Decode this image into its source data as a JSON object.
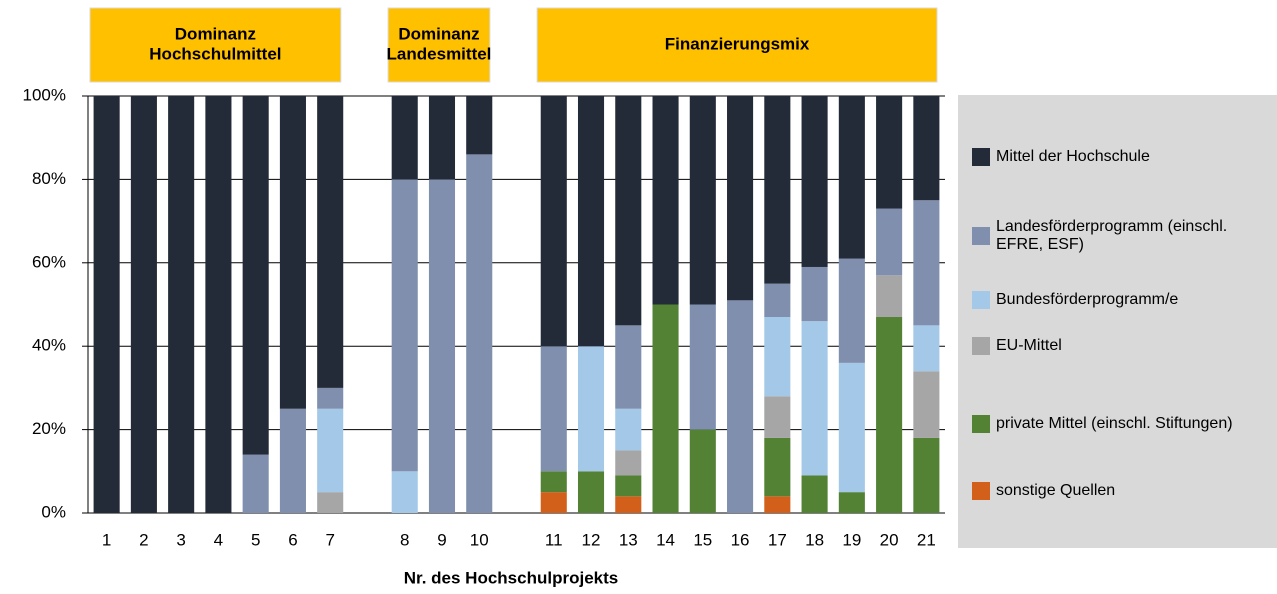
{
  "chart_data": {
    "type": "stacked_bar",
    "x_label": "Nr. des Hochschulprojekts",
    "groups": [
      [
        "Dominanz",
        "Hochschulmittel"
      ],
      [
        "Dominanz",
        "Landesmittel"
      ],
      [
        "Finanzierungsmix"
      ]
    ],
    "categories": [
      "1",
      "2",
      "3",
      "4",
      "5",
      "6",
      "7",
      null,
      "8",
      "9",
      "10",
      null,
      "11",
      "12",
      "13",
      "14",
      "15",
      "16",
      "17",
      "18",
      "19",
      "20",
      "21"
    ],
    "series": [
      {
        "name": "Mittel der Hochschule",
        "color": "#232b38",
        "values": [
          100,
          100,
          100,
          100,
          86,
          75,
          70,
          null,
          20,
          20,
          14,
          null,
          60,
          60,
          55,
          50,
          50,
          49,
          45,
          41,
          39,
          27,
          25
        ]
      },
      {
        "name": "Landesförderprogramm (einschl. EFRE, ESF)",
        "color": "#7f8fad",
        "values": [
          0,
          0,
          0,
          0,
          14,
          25,
          5,
          null,
          70,
          80,
          86,
          null,
          30,
          0,
          20,
          0,
          30,
          51,
          8,
          13,
          25,
          16,
          30
        ]
      },
      {
        "name": "Bundesförderprogramm/e",
        "color": "#a4c8e8",
        "values": [
          0,
          0,
          0,
          0,
          0,
          0,
          20,
          null,
          10,
          0,
          0,
          null,
          0,
          30,
          10,
          0,
          0,
          0,
          19,
          37,
          31,
          0,
          11
        ]
      },
      {
        "name": "EU-Mittel",
        "color": "#a6a6a6",
        "values": [
          0,
          0,
          0,
          0,
          0,
          0,
          5,
          null,
          0,
          0,
          0,
          null,
          0,
          0,
          6,
          0,
          0,
          0,
          10,
          0,
          0,
          10,
          16
        ]
      },
      {
        "name": "private Mittel (einschl. Stiftungen)",
        "color": "#548235",
        "values": [
          0,
          0,
          0,
          0,
          0,
          0,
          0,
          null,
          0,
          0,
          0,
          null,
          5,
          10,
          5,
          50,
          20,
          0,
          14,
          9,
          5,
          47,
          18
        ]
      },
      {
        "name": "sonstige Quellen",
        "color": "#d2601a",
        "values": [
          0,
          0,
          0,
          0,
          0,
          0,
          0,
          null,
          0,
          0,
          0,
          null,
          5,
          0,
          4,
          0,
          0,
          0,
          4,
          0,
          0,
          0,
          0
        ]
      }
    ],
    "ylim": [
      0,
      100
    ],
    "yticks": [
      {
        "value": 0,
        "label": "0%"
      },
      {
        "value": 20,
        "label": "20%"
      },
      {
        "value": 40,
        "label": "40%"
      },
      {
        "value": 60,
        "label": "60%"
      },
      {
        "value": 80,
        "label": "80%"
      },
      {
        "value": 100,
        "label": "100%"
      }
    ],
    "grid": true,
    "legend": "right"
  }
}
